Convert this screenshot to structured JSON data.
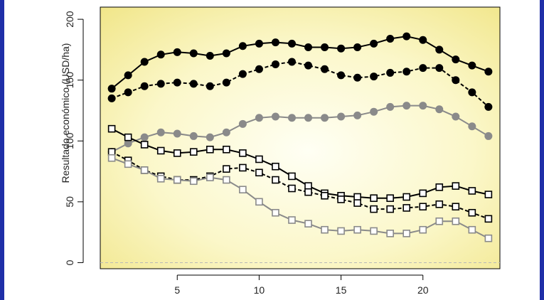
{
  "chart_data": {
    "type": "line",
    "ylabel": "Resultado económico (USD/ha)",
    "xlabel": "",
    "xlim": [
      0.3,
      24.7
    ],
    "ylim": [
      -5,
      210
    ],
    "xticks": [
      5,
      10,
      15,
      20
    ],
    "yticks": [
      0,
      50,
      100,
      150,
      200
    ],
    "reference_line": 0,
    "x": [
      1,
      2,
      3,
      4,
      5,
      6,
      7,
      8,
      9,
      10,
      11,
      12,
      13,
      14,
      15,
      16,
      17,
      18,
      19,
      20,
      21,
      22,
      23,
      24
    ],
    "series": [
      {
        "color": "#000000",
        "marker": "circle-filled",
        "line": "solid",
        "values": [
          143,
          154,
          165,
          171,
          173,
          172,
          170,
          172,
          178,
          180,
          181,
          180,
          177,
          177,
          176,
          177,
          180,
          184,
          186,
          183,
          175,
          167,
          162,
          157
        ]
      },
      {
        "color": "#000000",
        "marker": "circle-filled",
        "line": "dashed",
        "values": [
          135,
          140,
          145,
          147,
          148,
          147,
          145,
          148,
          155,
          159,
          163,
          165,
          162,
          159,
          154,
          152,
          153,
          156,
          157,
          160,
          160,
          150,
          140,
          128
        ]
      },
      {
        "color": "#8a8a8a",
        "marker": "circle-filled",
        "line": "solid",
        "values": [
          91,
          98,
          103,
          107,
          106,
          104,
          103,
          107,
          114,
          119,
          120,
          119,
          119,
          119,
          120,
          121,
          124,
          128,
          129,
          129,
          126,
          120,
          112,
          104
        ]
      },
      {
        "color": "#000000",
        "marker": "square-open",
        "line": "solid",
        "values": [
          110,
          103,
          97,
          92,
          90,
          91,
          93,
          93,
          90,
          85,
          79,
          71,
          63,
          57,
          55,
          54,
          53,
          53,
          54,
          57,
          62,
          63,
          59,
          56
        ]
      },
      {
        "color": "#000000",
        "marker": "square-open",
        "line": "dashed",
        "values": [
          91,
          84,
          76,
          71,
          68,
          68,
          71,
          77,
          78,
          74,
          68,
          61,
          58,
          55,
          52,
          49,
          44,
          44,
          45,
          46,
          48,
          46,
          41,
          36
        ]
      },
      {
        "color": "#8a8a8a",
        "marker": "square-open",
        "line": "solid",
        "values": [
          86,
          81,
          76,
          69,
          68,
          67,
          70,
          68,
          60,
          50,
          41,
          35,
          32,
          27,
          26,
          27,
          26,
          24,
          24,
          27,
          34,
          34,
          27,
          20
        ]
      }
    ]
  }
}
